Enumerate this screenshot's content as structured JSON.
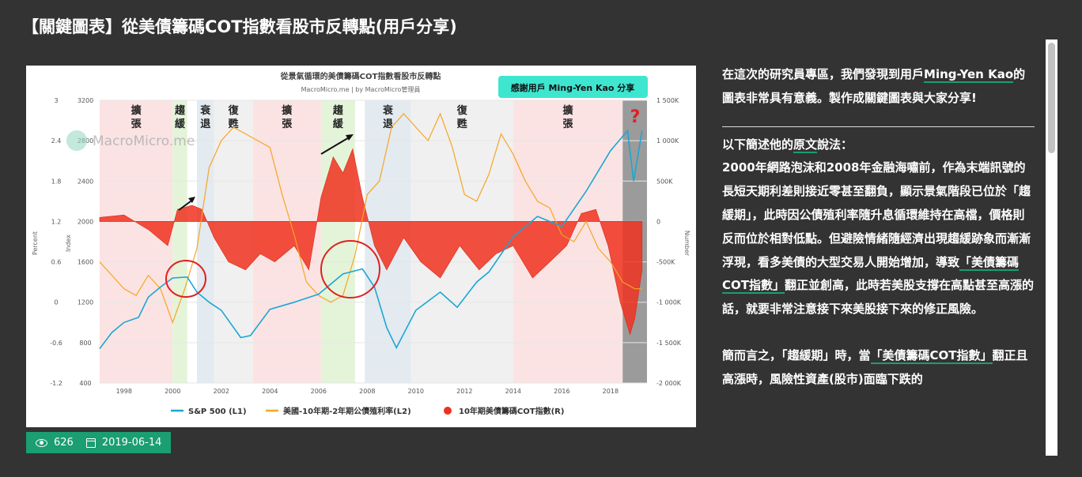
{
  "page": {
    "title": "【關鍵圖表】從美債籌碼COT指數看股市反轉點(用戶分享)"
  },
  "chart": {
    "title": "從景氣循環的美債籌碼COT指數看股市反轉點",
    "subtitle": "MacroMicro.me | by MacroMicro管理員",
    "watermark": "MacroMicro.me",
    "credit_badge": "感謝用戶 Ming-Yen Kao 分享",
    "question_mark": "?",
    "left_axis1_label": "Percent",
    "left_axis2_label": "Index",
    "right_axis_label": "Number",
    "left1_ticks": [
      "3",
      "2.4",
      "1.8",
      "1.2",
      "0.6",
      "0",
      "-0.6",
      "-1.2"
    ],
    "left2_ticks": [
      "3200",
      "2800",
      "2400",
      "2000",
      "1600",
      "1200",
      "800",
      "400"
    ],
    "right_ticks": [
      "1 500K",
      "1 000K",
      "500K",
      "0",
      "-500K",
      "-1 000K",
      "-1 500K",
      "-2 000K"
    ],
    "x_ticks": [
      "1998",
      "2000",
      "2002",
      "2004",
      "2006",
      "2008",
      "2010",
      "2012",
      "2014",
      "2016",
      "2018"
    ],
    "phases": [
      {
        "label": "擴\n張",
        "color": "#fbe3e3",
        "start": 1997.0,
        "end": 2000.0
      },
      {
        "label": "趨\n緩",
        "color": "#e4f4d8",
        "start": 2000.0,
        "end": 2000.6
      },
      {
        "label": "衰\n退",
        "color": "#e3eaf0",
        "start": 2001.0,
        "end": 2001.7
      },
      {
        "label": "復\n甦",
        "color": "#f0f0f0",
        "start": 2001.7,
        "end": 2003.3
      },
      {
        "label": "擴\n張",
        "color": "#fbe3e3",
        "start": 2003.3,
        "end": 2006.1
      },
      {
        "label": "趨\n緩",
        "color": "#e4f4d8",
        "start": 2006.1,
        "end": 2007.5
      },
      {
        "label": "衰\n退",
        "color": "#e3eaf0",
        "start": 2007.9,
        "end": 2009.8
      },
      {
        "label": "復\n甦",
        "color": "#f0f0f0",
        "start": 2009.8,
        "end": 2014.0
      },
      {
        "label": "擴\n張",
        "color": "#fbe3e3",
        "start": 2014.0,
        "end": 2018.5
      }
    ],
    "legend": [
      {
        "name": "S&P 500 (L1)",
        "color": "#1aa7d3",
        "type": "line"
      },
      {
        "name": "美國-10年期-2年期公債殖利率(L2)",
        "color": "#f5a623",
        "type": "line"
      },
      {
        "name": "10年期美債籌碼COT指數(R)",
        "color": "#f0311f",
        "type": "dot"
      }
    ]
  },
  "chart_data": {
    "type": "line",
    "title": "從景氣循環的美債籌碼COT指數看股市反轉點",
    "x_range": [
      1997.0,
      2019.5
    ],
    "axes": {
      "L1": {
        "label": "Index",
        "ylim": [
          400,
          3200
        ]
      },
      "L2": {
        "label": "Percent",
        "ylim": [
          -1.2,
          3.0
        ]
      },
      "R": {
        "label": "Number",
        "ylim": [
          -2000000,
          1500000
        ]
      }
    },
    "series": [
      {
        "name": "S&P 500 (L1)",
        "axis": "L1",
        "x": [
          1997.0,
          1997.5,
          1998.0,
          1998.6,
          1999.0,
          1999.5,
          2000.0,
          2000.6,
          2001.0,
          2001.5,
          2002.0,
          2002.8,
          2003.2,
          2004.0,
          2005.0,
          2006.0,
          2007.0,
          2007.8,
          2008.3,
          2008.8,
          2009.2,
          2010.0,
          2011.0,
          2011.7,
          2012.5,
          2013.0,
          2014.0,
          2015.0,
          2016.0,
          2017.0,
          2018.0,
          2018.7,
          2018.95,
          2019.3
        ],
        "y": [
          740,
          900,
          1000,
          1050,
          1250,
          1350,
          1440,
          1450,
          1300,
          1200,
          1120,
          850,
          870,
          1130,
          1200,
          1280,
          1480,
          1530,
          1350,
          950,
          750,
          1120,
          1300,
          1150,
          1400,
          1500,
          1850,
          2050,
          1950,
          2300,
          2700,
          2900,
          2400,
          2900
        ]
      },
      {
        "name": "美國-10年期-2年期公債殖利率(L2)",
        "axis": "L2",
        "x": [
          1997.0,
          1997.5,
          1998.0,
          1998.5,
          1999.0,
          1999.5,
          2000.0,
          2000.5,
          2001.0,
          2001.5,
          2002.0,
          2002.5,
          2003.0,
          2003.5,
          2004.0,
          2004.5,
          2005.0,
          2005.5,
          2006.0,
          2006.5,
          2007.0,
          2007.5,
          2008.0,
          2008.5,
          2009.0,
          2009.5,
          2010.0,
          2010.5,
          2011.0,
          2011.5,
          2012.0,
          2012.5,
          2013.0,
          2013.5,
          2014.0,
          2014.5,
          2015.0,
          2015.5,
          2016.0,
          2016.5,
          2017.0,
          2017.5,
          2018.0,
          2018.5,
          2019.0,
          2019.3
        ],
        "y": [
          0.6,
          0.4,
          0.2,
          0.1,
          0.4,
          0.2,
          -0.3,
          0.2,
          0.8,
          2.0,
          2.4,
          2.6,
          2.5,
          2.4,
          2.3,
          1.6,
          1.0,
          0.3,
          0.1,
          0.0,
          0.1,
          0.7,
          1.6,
          1.8,
          2.6,
          2.8,
          2.6,
          2.4,
          2.8,
          2.3,
          1.6,
          1.5,
          1.9,
          2.5,
          2.2,
          1.8,
          1.5,
          1.4,
          1.0,
          0.9,
          1.2,
          0.8,
          0.6,
          0.3,
          0.2,
          0.2
        ]
      },
      {
        "name": "10年期美債籌碼COT指數(R)",
        "axis": "R",
        "type": "bar",
        "x": [
          1997.0,
          1998.0,
          1999.0,
          1999.8,
          2000.2,
          2000.8,
          2001.2,
          2001.7,
          2002.3,
          2003.0,
          2003.6,
          2004.2,
          2005.0,
          2005.6,
          2006.1,
          2006.6,
          2007.0,
          2007.4,
          2007.8,
          2008.3,
          2008.8,
          2009.5,
          2010.2,
          2011.0,
          2011.8,
          2012.6,
          2013.3,
          2014.0,
          2014.8,
          2015.5,
          2016.2,
          2016.8,
          2017.4,
          2017.9,
          2018.4,
          2018.8,
          2019.0,
          2019.3
        ],
        "y": [
          50000,
          80000,
          -100000,
          -300000,
          150000,
          200000,
          150000,
          -200000,
          -500000,
          -600000,
          -400000,
          -500000,
          -300000,
          -600000,
          300000,
          800000,
          600000,
          900000,
          300000,
          -300000,
          -600000,
          -200000,
          -500000,
          -700000,
          -300000,
          -600000,
          -400000,
          -300000,
          -700000,
          -500000,
          -300000,
          100000,
          150000,
          -300000,
          -1000000,
          -1400000,
          -1200000,
          -600000
        ]
      }
    ]
  },
  "meta": {
    "views": "626",
    "date": "2019-06-14"
  },
  "article": {
    "p1_a": "在這次的研究員專區，我們發現到用戶",
    "p1_link": "Ming-Yen Kao",
    "p1_b": "的圖表非常具有意義。製作成關鍵圖表與大家分享!",
    "p2_a": "以下簡述他的",
    "p2_link": "原文",
    "p2_b": "說法：",
    "p3_a": "2000年網路泡沫和2008年金融海嘯前，作為末端訊號的長短天期利差則接近零甚至翻負，顯示景氣階段已位於「趨緩期」，此時因公債殖利率隨升息循環維持在高檔，價格則反而位於相對低點。但避險情緒隨經濟出現趨緩跡象而漸漸浮現，看多美債的大型交易人開始增加，導致",
    "p3_link": "「美債籌碼COT指數」",
    "p3_b": "翻正並創高，此時若美股支撐在高點甚至高漲的話，就要非常注意接下來美股接下來的修正風險。",
    "p4_a": "簡而言之，「趨緩期」時，當",
    "p4_link": "「美債籌碼COT指數」",
    "p4_b": "翻正且高漲時，風險性資產(股市)面臨下跌的"
  },
  "colors": {
    "background": "#333333",
    "accent": "#1a9e72",
    "sp500": "#1aa7d3",
    "spread": "#f5a623",
    "cot": "#f0311f"
  }
}
